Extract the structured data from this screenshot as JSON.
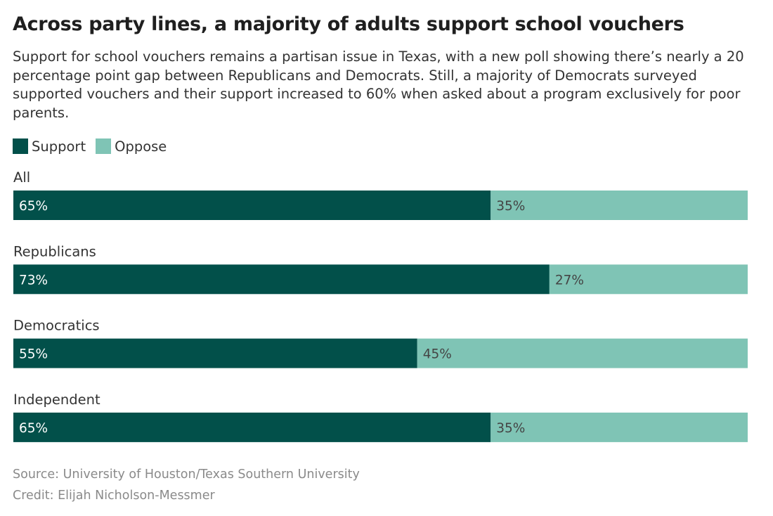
{
  "title": "Across party lines, a majority of adults support school vouchers",
  "subtitle": "Support for school vouchers remains a partisan issue in Texas, with a new poll showing there’s nearly a 20 percentage point gap between Republicans and Democrats. Still, a majority of Democrats surveyed supported vouchers and their support increased to 60% when asked about a program exclusively for poor parents.",
  "legend": {
    "support_label": "Support",
    "oppose_label": "Oppose"
  },
  "colors": {
    "support": "#02504a",
    "oppose": "#7fc4b5"
  },
  "chart_data": {
    "type": "bar",
    "orientation": "horizontal",
    "stacked": true,
    "categories": [
      "All",
      "Republicans",
      "Democratics",
      "Independent"
    ],
    "series": [
      {
        "name": "Support",
        "values": [
          65,
          73,
          55,
          65
        ]
      },
      {
        "name": "Oppose",
        "values": [
          35,
          27,
          45,
          35
        ]
      }
    ],
    "data_labels": [
      [
        "65%",
        "73%",
        "55%",
        "65%"
      ],
      [
        "35%",
        "27%",
        "45%",
        "35%"
      ]
    ],
    "xlim": [
      0,
      100
    ],
    "legend_position": "top-left",
    "grid": false
  },
  "footer": {
    "source": "Source: University of Houston/Texas Southern University",
    "credit": "Credit: Elijah Nicholson-Messmer"
  }
}
